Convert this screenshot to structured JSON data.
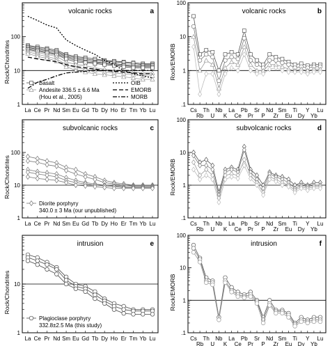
{
  "chart_data": [
    {
      "panel": "a",
      "type": "line",
      "title": "volcanic rocks",
      "ylabel": "Rock/Chondrites",
      "ylog": true,
      "ylim": [
        1,
        1000
      ],
      "yticks": [
        "1",
        "10",
        "100"
      ],
      "categories": [
        "La",
        "Ce",
        "Pr",
        "Nd",
        "Sm",
        "Eu",
        "Gd",
        "Tb",
        "Dy",
        "Ho",
        "Er",
        "Tm",
        "Yb",
        "Lu"
      ],
      "reference_line": 10,
      "legend": {
        "series": [
          "Basalt",
          "Andesite 336.5 ± 6.6 Ma",
          "(Hou et al., 2005)"
        ],
        "refs": [
          "OIB",
          "EMORB",
          "MORB"
        ]
      },
      "series": [
        {
          "name": "Basalt",
          "values": [
            55,
            50,
            45,
            40,
            30,
            26,
            24,
            22,
            20,
            19,
            18,
            17,
            16,
            16
          ]
        },
        {
          "name": "Basalt",
          "values": [
            52,
            46,
            42,
            37,
            28,
            24,
            22,
            20,
            19,
            18,
            17,
            16,
            15,
            15
          ]
        },
        {
          "name": "Basalt",
          "values": [
            48,
            43,
            38,
            34,
            26,
            22,
            20,
            18,
            17,
            16,
            15,
            14,
            14,
            14
          ]
        },
        {
          "name": "Basalt",
          "values": [
            45,
            40,
            35,
            31,
            24,
            20,
            18,
            17,
            16,
            15,
            14,
            13,
            13,
            13
          ]
        },
        {
          "name": "Basalt",
          "values": [
            42,
            37,
            33,
            29,
            22,
            18,
            17,
            16,
            15,
            14,
            13,
            12,
            12,
            12
          ]
        },
        {
          "name": "Andesite 336.5 ± 6.6 Ma",
          "values": [
            40,
            34,
            30,
            26,
            18,
            15,
            14,
            12,
            11,
            10,
            9.5,
            9,
            8.5,
            8.5
          ]
        },
        {
          "name": "Andesite 336.5 ± 6.6 Ma",
          "values": [
            36,
            30,
            26,
            22,
            15,
            12,
            11,
            10,
            9,
            8.5,
            8,
            7.5,
            7,
            7
          ]
        },
        {
          "name": "Andesite 336.5 ± 6.6 Ma",
          "values": [
            32,
            26,
            23,
            19,
            13,
            10,
            9,
            8,
            7.5,
            7,
            6.5,
            6,
            5.5,
            5.5
          ]
        },
        {
          "name": "OIB",
          "values": [
            400,
            300,
            220,
            180,
            80,
            55,
            40,
            30,
            20,
            15,
            10,
            8,
            7,
            6
          ]
        },
        {
          "name": "EMORB",
          "values": [
            25,
            22,
            20,
            18,
            15,
            13,
            12,
            11,
            10,
            9.5,
            9,
            8.5,
            8,
            8
          ]
        },
        {
          "name": "MORB",
          "values": [
            3,
            4.5,
            5.5,
            7,
            8.5,
            9,
            9.5,
            10,
            10,
            10,
            10,
            10,
            10,
            10
          ]
        }
      ]
    },
    {
      "panel": "b",
      "type": "line",
      "title": "volcanic rocks",
      "ylabel": "Rock/EMORB",
      "ylog": true,
      "ylim": [
        0.1,
        100
      ],
      "yticks": [
        ".1",
        "1",
        "10",
        "100"
      ],
      "categories": [
        "Cs",
        "Rb",
        "Th",
        "U",
        "Nb",
        "K",
        "La",
        "Ce",
        "Pb",
        "Pr",
        "Sr",
        "P",
        "Nd",
        "Zr",
        "Sm",
        "Eu",
        "Ti",
        "Dy",
        "Y",
        "Yb",
        "Lu"
      ],
      "reference_line": 1,
      "series": [
        {
          "name": "",
          "values": [
            40,
            3,
            4,
            3.5,
            1,
            3,
            3.5,
            3,
            15,
            3,
            2,
            1.5,
            3,
            2.5,
            2.2,
            1.8,
            1.5,
            1.6,
            1.4,
            1.5,
            1.5
          ]
        },
        {
          "name": "",
          "values": [
            20,
            2,
            3,
            2.5,
            0.5,
            2,
            2.5,
            2.2,
            9,
            2,
            1.5,
            1.2,
            2,
            2,
            1.7,
            1.5,
            1.2,
            1.3,
            1.2,
            1.3,
            1.3
          ]
        },
        {
          "name": "",
          "values": [
            10,
            1,
            2,
            1.5,
            0.3,
            1.2,
            1.8,
            1.5,
            5,
            1.5,
            1,
            1,
            1.5,
            1.5,
            1.3,
            1.1,
            1,
            1.1,
            1,
            1.1,
            1.1
          ]
        },
        {
          "name": "",
          "values": [
            5,
            0.2,
            0.8,
            0.8,
            0.2,
            0.8,
            1.2,
            1,
            3,
            1,
            0.8,
            0.8,
            1.1,
            1.2,
            1,
            0.9,
            0.9,
            0.9,
            0.8,
            0.9,
            0.9
          ]
        }
      ]
    },
    {
      "panel": "c",
      "type": "line",
      "title": "subvolcanic rocks",
      "ylabel": "Rock/Chondrites",
      "ylog": true,
      "ylim": [
        1,
        1000
      ],
      "yticks": [
        "1",
        "10",
        "100"
      ],
      "categories": [
        "La",
        "Ce",
        "Pr",
        "Nd",
        "Sm",
        "Eu",
        "Gd",
        "Tb",
        "Dy",
        "Ho",
        "Er",
        "Tm",
        "Yb",
        "Lu"
      ],
      "reference_line": 10,
      "legend": {
        "series": [
          "Diorite porphyry",
          "340.0 ± 3 Ma (our unpublished)"
        ]
      },
      "series": [
        {
          "name": "Diorite porphyry",
          "values": [
            75,
            65,
            55,
            48,
            35,
            30,
            22,
            18,
            14,
            12,
            11,
            10,
            10,
            10
          ]
        },
        {
          "name": "Diorite porphyry",
          "values": [
            55,
            50,
            42,
            38,
            28,
            22,
            18,
            15,
            12,
            11,
            10,
            9.5,
            9.5,
            9.5
          ]
        },
        {
          "name": "Diorite porphyry",
          "values": [
            30,
            26,
            24,
            22,
            17,
            14,
            12,
            11,
            10,
            9.5,
            9,
            9,
            9,
            9
          ]
        },
        {
          "name": "Diorite porphyry",
          "values": [
            25,
            22,
            20,
            18,
            14,
            12,
            11,
            10,
            9.5,
            9,
            8.5,
            8.5,
            8.5,
            8.5
          ]
        },
        {
          "name": "Diorite porphyry",
          "values": [
            18,
            16,
            15,
            14,
            12,
            10,
            9.5,
            9,
            8.5,
            8,
            8,
            8,
            8,
            8
          ]
        }
      ]
    },
    {
      "panel": "d",
      "type": "line",
      "title": "subvolcanic rocks",
      "ylabel": "Rock/EMORB",
      "ylog": true,
      "ylim": [
        0.1,
        100
      ],
      "yticks": [
        ".1",
        "1",
        "10",
        "100"
      ],
      "categories": [
        "Cs",
        "Rb",
        "Th",
        "U",
        "Nb",
        "K",
        "La",
        "Ce",
        "Pb",
        "Pr",
        "Sr",
        "P",
        "Nd",
        "Zr",
        "Sm",
        "Eu",
        "Ti",
        "Dy",
        "Y",
        "Yb",
        "Lu"
      ],
      "reference_line": 1,
      "series": [
        {
          "name": "",
          "values": [
            10,
            5,
            6,
            4,
            0.6,
            3,
            3.5,
            3,
            15,
            3,
            2,
            1,
            2.5,
            2,
            1.8,
            1.5,
            1,
            1.2,
            1,
            1.2,
            1.2
          ]
        },
        {
          "name": "",
          "values": [
            8,
            4,
            4,
            3,
            0.5,
            2.5,
            3,
            2.5,
            12,
            2.5,
            1.5,
            0.8,
            2.2,
            1.8,
            1.5,
            1.2,
            0.8,
            1,
            0.9,
            1,
            1
          ]
        },
        {
          "name": "",
          "values": [
            5,
            2,
            3,
            2,
            0.4,
            2,
            2.2,
            2,
            6,
            2,
            1.2,
            0.6,
            1.8,
            1.5,
            1.2,
            1,
            0.7,
            0.9,
            0.8,
            0.9,
            0.9
          ]
        },
        {
          "name": "",
          "values": [
            3,
            1.5,
            2,
            1.5,
            0.3,
            1.5,
            1.8,
            1.6,
            4,
            1.6,
            1,
            0.5,
            1.5,
            1.3,
            1,
            0.9,
            0.6,
            0.8,
            0.7,
            0.8,
            0.8
          ]
        }
      ]
    },
    {
      "panel": "e",
      "type": "line",
      "title": "intrusion",
      "ylabel": "Rock/Chondrites",
      "ylog": true,
      "ylim": [
        1,
        100
      ],
      "yticks": [
        "1",
        "10"
      ],
      "categories": [
        "La",
        "Ce",
        "Pr",
        "Nd",
        "Sm",
        "Eu",
        "Gd",
        "Tb",
        "Dy",
        "Ho",
        "Er",
        "Tm",
        "Yb",
        "Lu"
      ],
      "reference_line": 10,
      "legend": {
        "series": [
          "Plagioclase porphyry",
          "332.8±2.5 Ma (this study)"
        ]
      },
      "series": [
        {
          "name": "Plagioclase porphyry",
          "values": [
            40,
            35,
            28,
            22,
            14,
            10,
            9,
            7,
            5,
            4,
            3.5,
            3,
            3,
            3
          ]
        },
        {
          "name": "Plagioclase porphyry",
          "values": [
            35,
            30,
            25,
            20,
            12,
            9,
            8,
            6,
            4.5,
            3.5,
            3,
            2.8,
            2.8,
            2.8
          ]
        },
        {
          "name": "Plagioclase porphyry",
          "values": [
            30,
            25,
            20,
            16,
            10,
            8,
            7,
            5,
            4,
            3,
            2.5,
            2.4,
            2.4,
            2.4
          ]
        }
      ]
    },
    {
      "panel": "f",
      "type": "line",
      "title": "intrusion",
      "ylabel": "Rock/EMORB",
      "ylog": true,
      "ylim": [
        0.1,
        100
      ],
      "yticks": [
        ".1",
        "1",
        "10",
        "100"
      ],
      "categories": [
        "Cs",
        "Rb",
        "Th",
        "U",
        "Nb",
        "K",
        "La",
        "Ce",
        "Pb",
        "Pr",
        "Sr",
        "P",
        "Nd",
        "Zr",
        "Sm",
        "Eu",
        "Ti",
        "Dy",
        "Y",
        "Yb",
        "Lu"
      ],
      "reference_line": 1,
      "series": [
        {
          "name": "",
          "values": [
            50,
            20,
            5,
            4,
            0.3,
            5,
            2.5,
            1.8,
            1.5,
            1.8,
            1,
            0.3,
            1,
            0.5,
            0.5,
            0.4,
            0.2,
            0.3,
            0.25,
            0.3,
            0.3
          ]
        },
        {
          "name": "",
          "values": [
            40,
            18,
            4,
            3.5,
            0.3,
            4,
            2,
            1.5,
            1.3,
            1.5,
            0.9,
            0.25,
            0.8,
            0.45,
            0.45,
            0.35,
            0.18,
            0.25,
            0.22,
            0.25,
            0.25
          ]
        },
        {
          "name": "",
          "values": [
            30,
            15,
            3.5,
            3,
            0.25,
            3.5,
            1.8,
            1.3,
            1.2,
            1.3,
            0.8,
            0.2,
            0.7,
            0.4,
            0.4,
            0.3,
            0.16,
            0.22,
            0.2,
            0.22,
            0.22
          ]
        }
      ]
    }
  ]
}
